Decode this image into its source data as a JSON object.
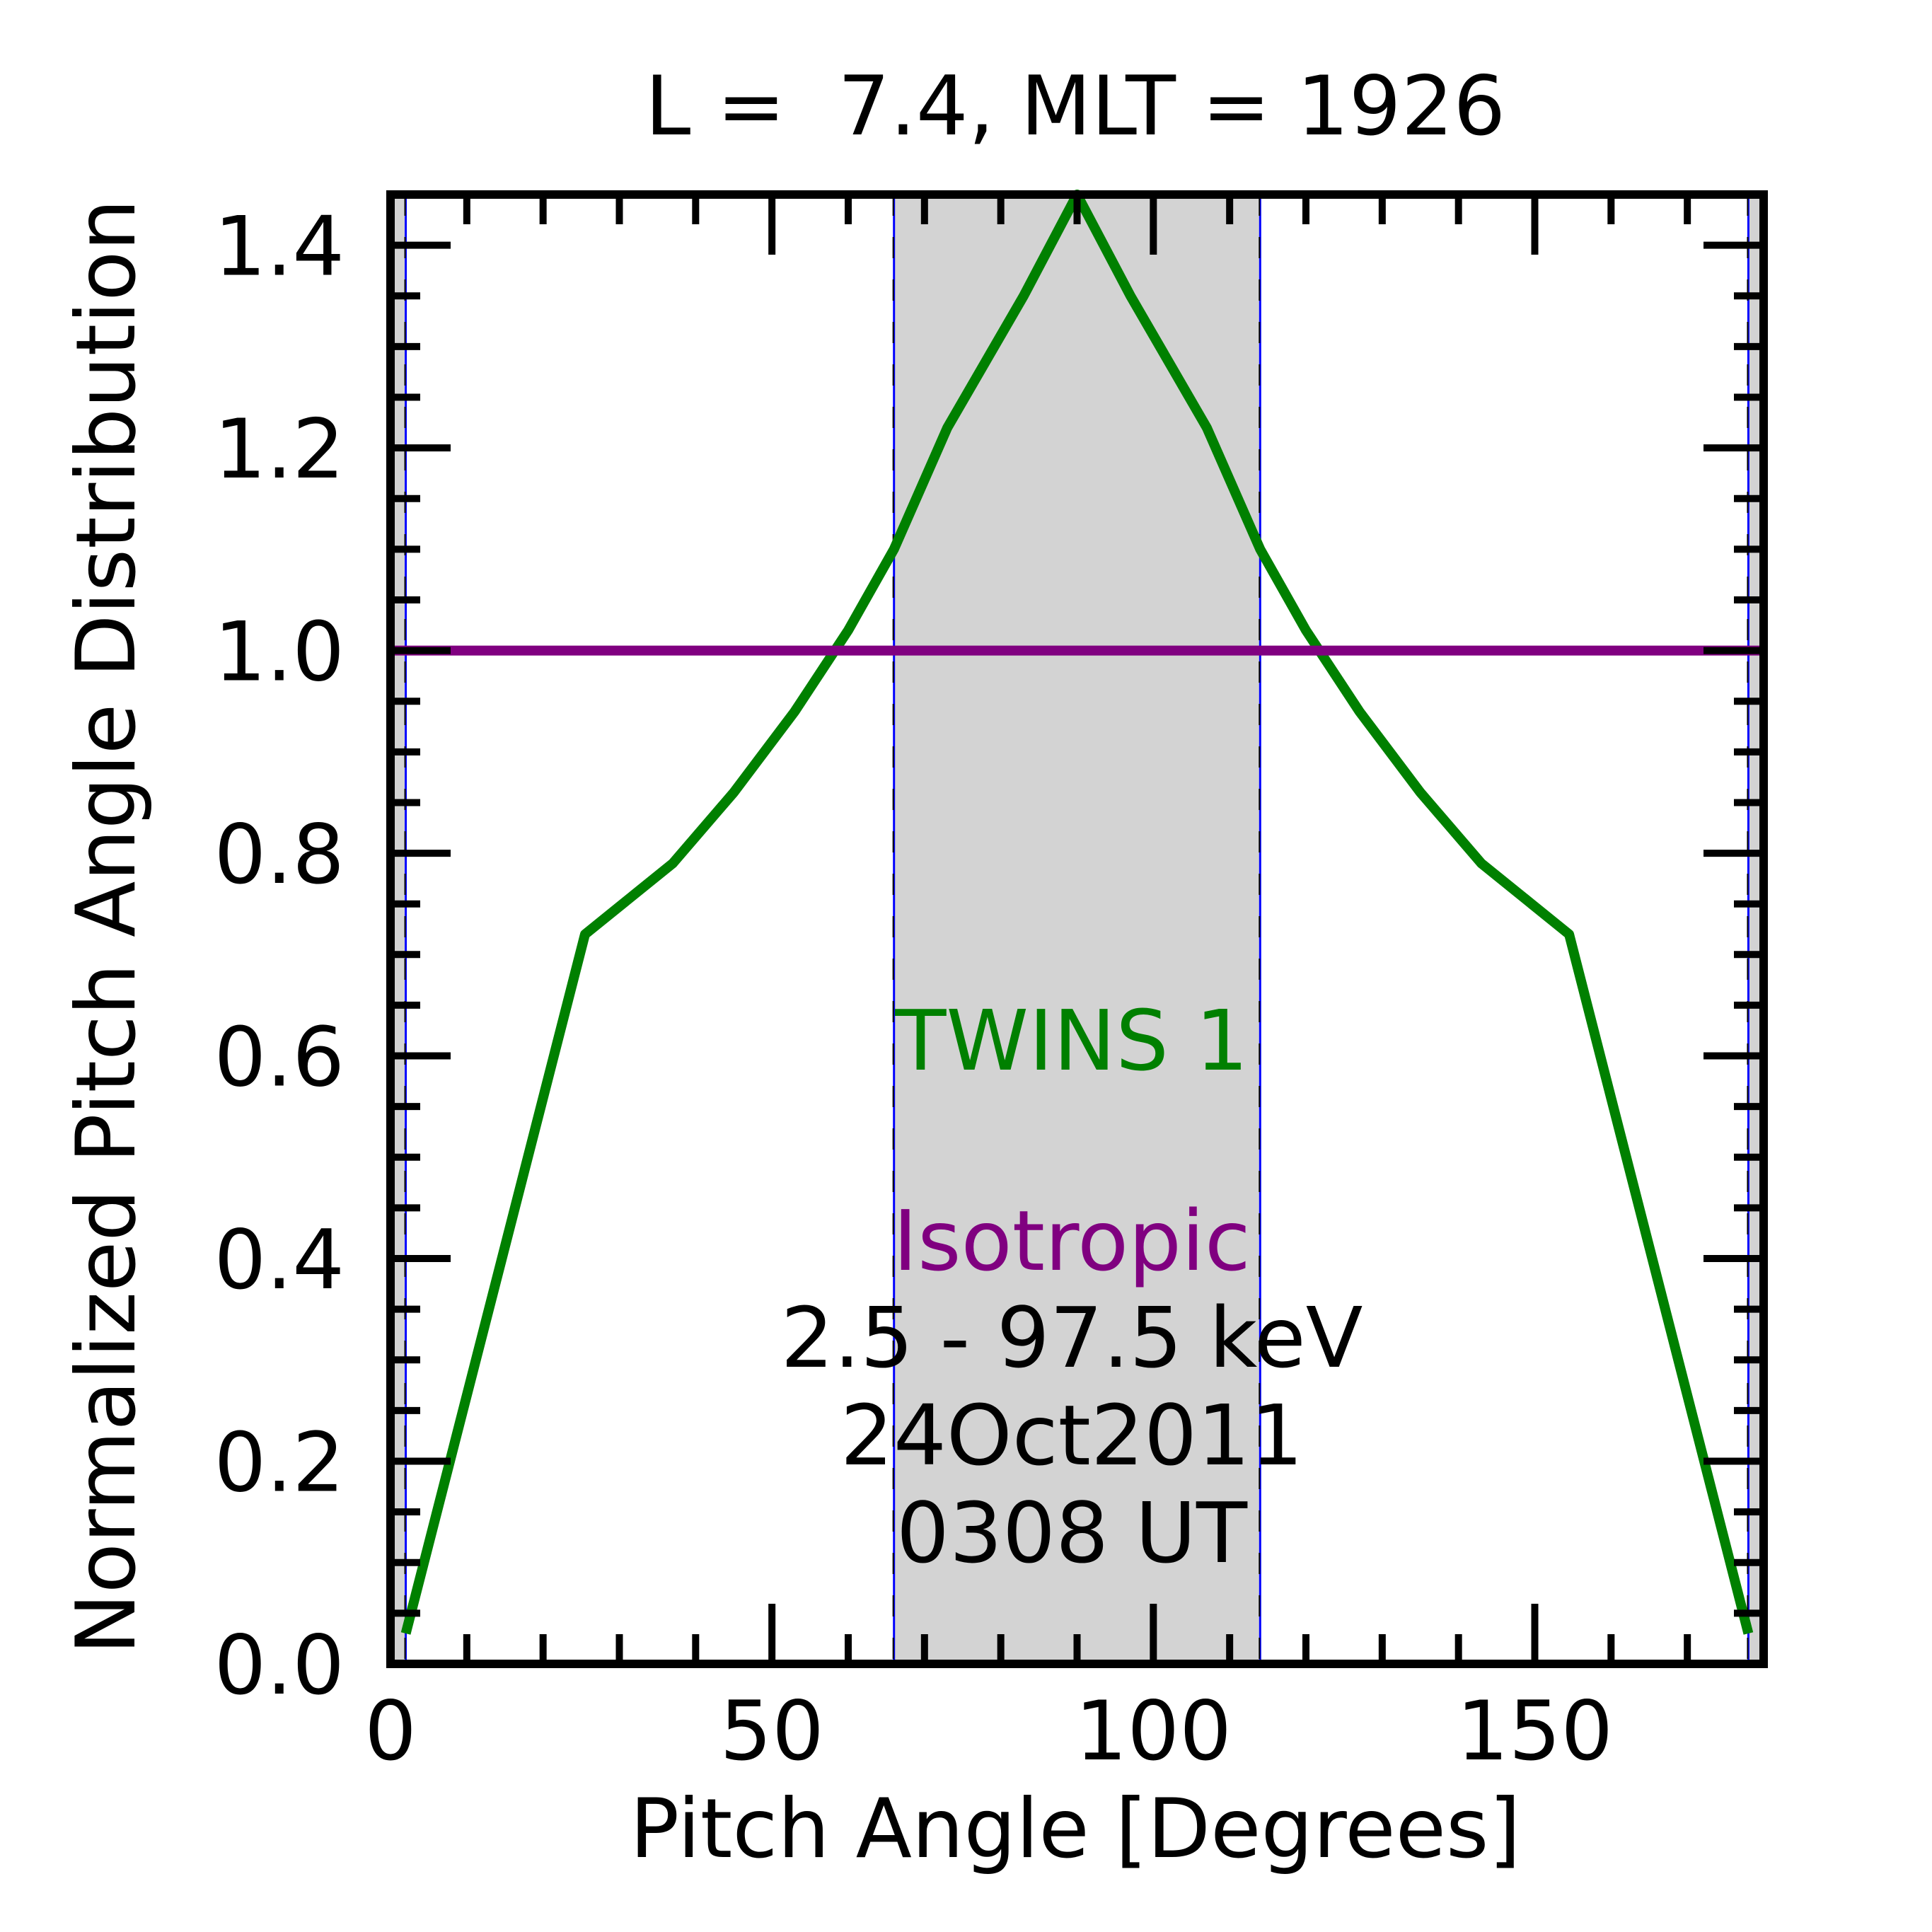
{
  "chart_data": {
    "type": "line",
    "title": "L =  7.4, MLT = 1926",
    "xlabel": "Pitch Angle [Degrees]",
    "ylabel": "Normalized Pitch Angle Distribution",
    "xlim": [
      0,
      180
    ],
    "ylim": [
      0,
      1.45
    ],
    "xticks": [
      {
        "value": 0,
        "label": "0"
      },
      {
        "value": 50,
        "label": "50"
      },
      {
        "value": 100,
        "label": "100"
      },
      {
        "value": 150,
        "label": "150"
      }
    ],
    "yticks": [
      {
        "value": 0.0,
        "label": "0.0"
      },
      {
        "value": 0.2,
        "label": "0.2"
      },
      {
        "value": 0.4,
        "label": "0.4"
      },
      {
        "value": 0.6,
        "label": "0.6"
      },
      {
        "value": 0.8,
        "label": "0.8"
      },
      {
        "value": 1.0,
        "label": "1.0"
      },
      {
        "value": 1.2,
        "label": "1.2"
      },
      {
        "value": 1.4,
        "label": "1.4"
      }
    ],
    "x_minor_step": 10,
    "y_minor_step": 0.05,
    "shaded_region": {
      "x": [
        66,
        114
      ],
      "color": "#d3d3d3"
    },
    "edge_regions": [
      [
        0,
        2
      ],
      [
        178,
        180
      ]
    ],
    "series": [
      {
        "name": "TWINS 1",
        "color": "#008000",
        "x": [
          2,
          25.5,
          37,
          45,
          53,
          60,
          66,
          73,
          83,
          90,
          97,
          107,
          114,
          120,
          127,
          135,
          143,
          154.5,
          178
        ],
        "y": [
          0.03,
          0.72,
          0.79,
          0.86,
          0.94,
          1.02,
          1.1,
          1.22,
          1.35,
          1.45,
          1.35,
          1.22,
          1.1,
          1.02,
          0.94,
          0.86,
          0.79,
          0.72,
          0.03
        ]
      },
      {
        "name": "Isotropic",
        "color": "#800080",
        "x": [
          0,
          180
        ],
        "y": [
          1.0,
          1.0
        ]
      }
    ],
    "annotations": {
      "twins_label": "TWINS 1",
      "isotropic_label": "Isotropic",
      "energy": "2.5 - 97.5 keV",
      "date": "24Oct2011",
      "time": "0308 UT"
    }
  }
}
